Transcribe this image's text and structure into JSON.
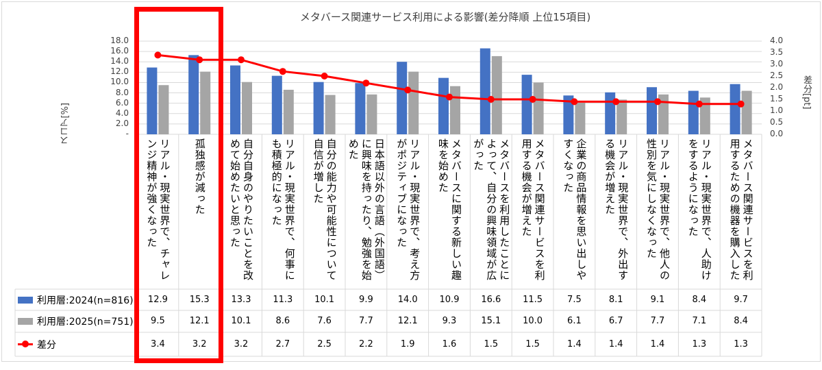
{
  "chart_data": {
    "type": "bar+line",
    "title": "メタバース関連サービス利用による影響(差分降順 上位15項目)",
    "ylabel": "スコア[%]",
    "y2label": "差分[pt]",
    "ylim": [
      0,
      18
    ],
    "y2lim": [
      0,
      4
    ],
    "yticks": [
      "-",
      "2.0",
      "4.0",
      "6.0",
      "8.0",
      "10.0",
      "12.0",
      "14.0",
      "16.0",
      "18.0"
    ],
    "y2ticks": [
      "0.0",
      "0.5",
      "1.0",
      "1.5",
      "2.0",
      "2.5",
      "3.0",
      "3.5",
      "4.0"
    ],
    "grid": true,
    "legend": "data-table",
    "categories": [
      "リアル・現実世界で、チャレンジ精神が強くなった",
      "孤独感が減った",
      "自分自身のやりたいことを改めて始めたいと思った",
      "リアル・現実世界で、何事にも積極的になった",
      "自分の能力や可能性について自信が増した",
      "日本語以外の言語（外国語）に興味を持ったり、勉強を始めた",
      "リアル・現実世界で、考え方がポジティブになった",
      "メタバースに関する新しい趣味を始めた",
      "メタバースを利用したことによって、自分の興味領域が広がった",
      "メタバース関連サービスを利用する機会が増えた",
      "企業の商品情報を思い出しやすくなった",
      "リアル・現実世界で、外出する機会が増えた",
      "リアル・現実世界で、他人の性別を気にしなくなった",
      "リアル・現実世界で、人助けをするようになった",
      "メタバース関連サービスを利用するための機器を購入した"
    ],
    "series": [
      {
        "name": "利用層:2024(n=816)",
        "type": "bar",
        "axis": "left",
        "color": "#4472c4",
        "values": [
          12.9,
          15.3,
          13.3,
          11.3,
          10.1,
          9.9,
          14.0,
          10.9,
          16.6,
          11.5,
          7.5,
          8.1,
          9.1,
          8.4,
          9.7
        ]
      },
      {
        "name": "利用層:2025(n=751)",
        "type": "bar",
        "axis": "left",
        "color": "#a5a5a5",
        "values": [
          9.5,
          12.1,
          10.1,
          8.6,
          7.6,
          7.7,
          12.1,
          9.3,
          15.1,
          10.0,
          6.1,
          6.7,
          7.7,
          7.1,
          8.4
        ]
      },
      {
        "name": "差分",
        "type": "line",
        "axis": "right",
        "color": "#ff0000",
        "values": [
          3.4,
          3.2,
          3.2,
          2.7,
          2.5,
          2.2,
          1.9,
          1.6,
          1.5,
          1.5,
          1.4,
          1.4,
          1.4,
          1.3,
          1.3
        ]
      }
    ],
    "highlight": {
      "categories": [
        0,
        1
      ],
      "color": "#ff0000"
    }
  }
}
